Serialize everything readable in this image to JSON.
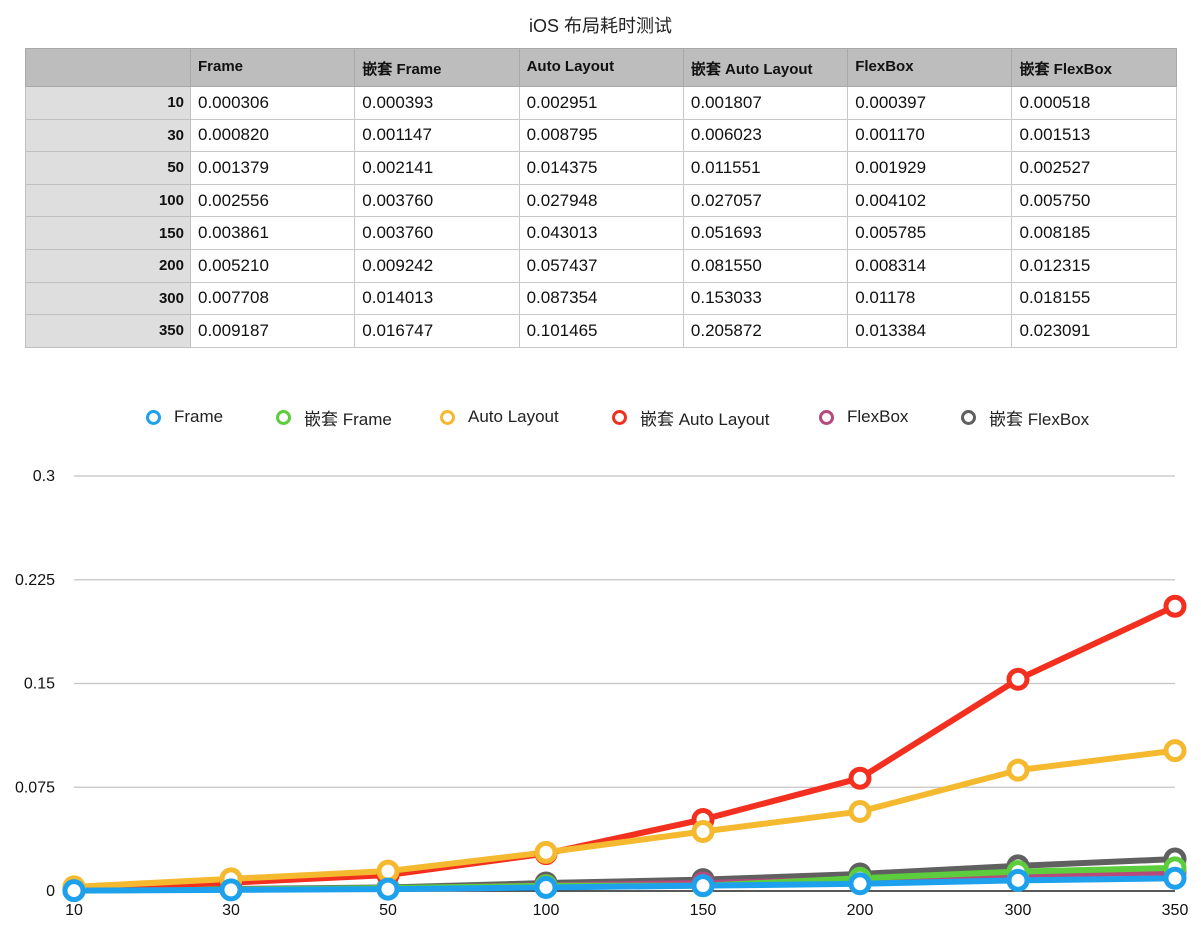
{
  "title": "iOS 布局耗时测试",
  "table": {
    "corner": "",
    "columns": [
      "Frame",
      "嵌套 Frame",
      "Auto Layout",
      "嵌套 Auto Layout",
      "FlexBox",
      "嵌套 FlexBox"
    ],
    "rows": [
      {
        "label": "10",
        "cells": [
          "0.000306",
          "0.000393",
          "0.002951",
          "0.001807",
          "0.000397",
          "0.000518"
        ]
      },
      {
        "label": "30",
        "cells": [
          "0.000820",
          "0.001147",
          "0.008795",
          "0.006023",
          "0.001170",
          "0.001513"
        ]
      },
      {
        "label": "50",
        "cells": [
          "0.001379",
          "0.002141",
          "0.014375",
          "0.011551",
          "0.001929",
          "0.002527"
        ]
      },
      {
        "label": "100",
        "cells": [
          "0.002556",
          "0.003760",
          "0.027948",
          "0.027057",
          "0.004102",
          "0.005750"
        ]
      },
      {
        "label": "150",
        "cells": [
          "0.003861",
          "0.003760",
          "0.043013",
          "0.051693",
          "0.005785",
          "0.008185"
        ]
      },
      {
        "label": "200",
        "cells": [
          "0.005210",
          "0.009242",
          "0.057437",
          "0.081550",
          "0.008314",
          "0.012315"
        ]
      },
      {
        "label": "300",
        "cells": [
          "0.007708",
          "0.014013",
          "0.087354",
          "0.153033",
          "0.01178",
          "0.018155"
        ]
      },
      {
        "label": "350",
        "cells": [
          "0.009187",
          "0.016747",
          "0.101465",
          "0.205872",
          "0.013384",
          "0.023091"
        ]
      }
    ]
  },
  "chart_data": {
    "type": "line",
    "title": "iOS 布局耗时测试",
    "xlabel": "",
    "ylabel": "",
    "categories": [
      "10",
      "30",
      "50",
      "100",
      "150",
      "200",
      "300",
      "350"
    ],
    "ylim": [
      0,
      0.3
    ],
    "yticks": [
      "0",
      "0.075",
      "0.15",
      "0.225",
      "0.3"
    ],
    "grid": true,
    "legend_position": "top",
    "series": [
      {
        "name": "Frame",
        "color": "#1ea1ec",
        "values": [
          0.000306,
          0.00082,
          0.001379,
          0.002556,
          0.003861,
          0.00521,
          0.007708,
          0.009187
        ]
      },
      {
        "name": "嵌套 Frame",
        "color": "#5ccd3c",
        "values": [
          0.000393,
          0.001147,
          0.002141,
          0.00376,
          0.00376,
          0.009242,
          0.014013,
          0.016747
        ]
      },
      {
        "name": "Auto Layout",
        "color": "#f4b92e",
        "values": [
          0.002951,
          0.008795,
          0.014375,
          0.027948,
          0.043013,
          0.057437,
          0.087354,
          0.101465
        ]
      },
      {
        "name": "嵌套 Auto Layout",
        "color": "#f3301f",
        "values": [
          0.001807,
          0.006023,
          0.011551,
          0.027057,
          0.051693,
          0.08155,
          0.153033,
          0.205872
        ]
      },
      {
        "name": "FlexBox",
        "color": "#b8497d",
        "values": [
          0.000397,
          0.00117,
          0.001929,
          0.004102,
          0.005785,
          0.008314,
          0.01178,
          0.013384
        ]
      },
      {
        "name": "嵌套 FlexBox",
        "color": "#606060",
        "values": [
          0.000518,
          0.001513,
          0.002527,
          0.00575,
          0.008185,
          0.012315,
          0.018155,
          0.023091
        ]
      }
    ]
  }
}
